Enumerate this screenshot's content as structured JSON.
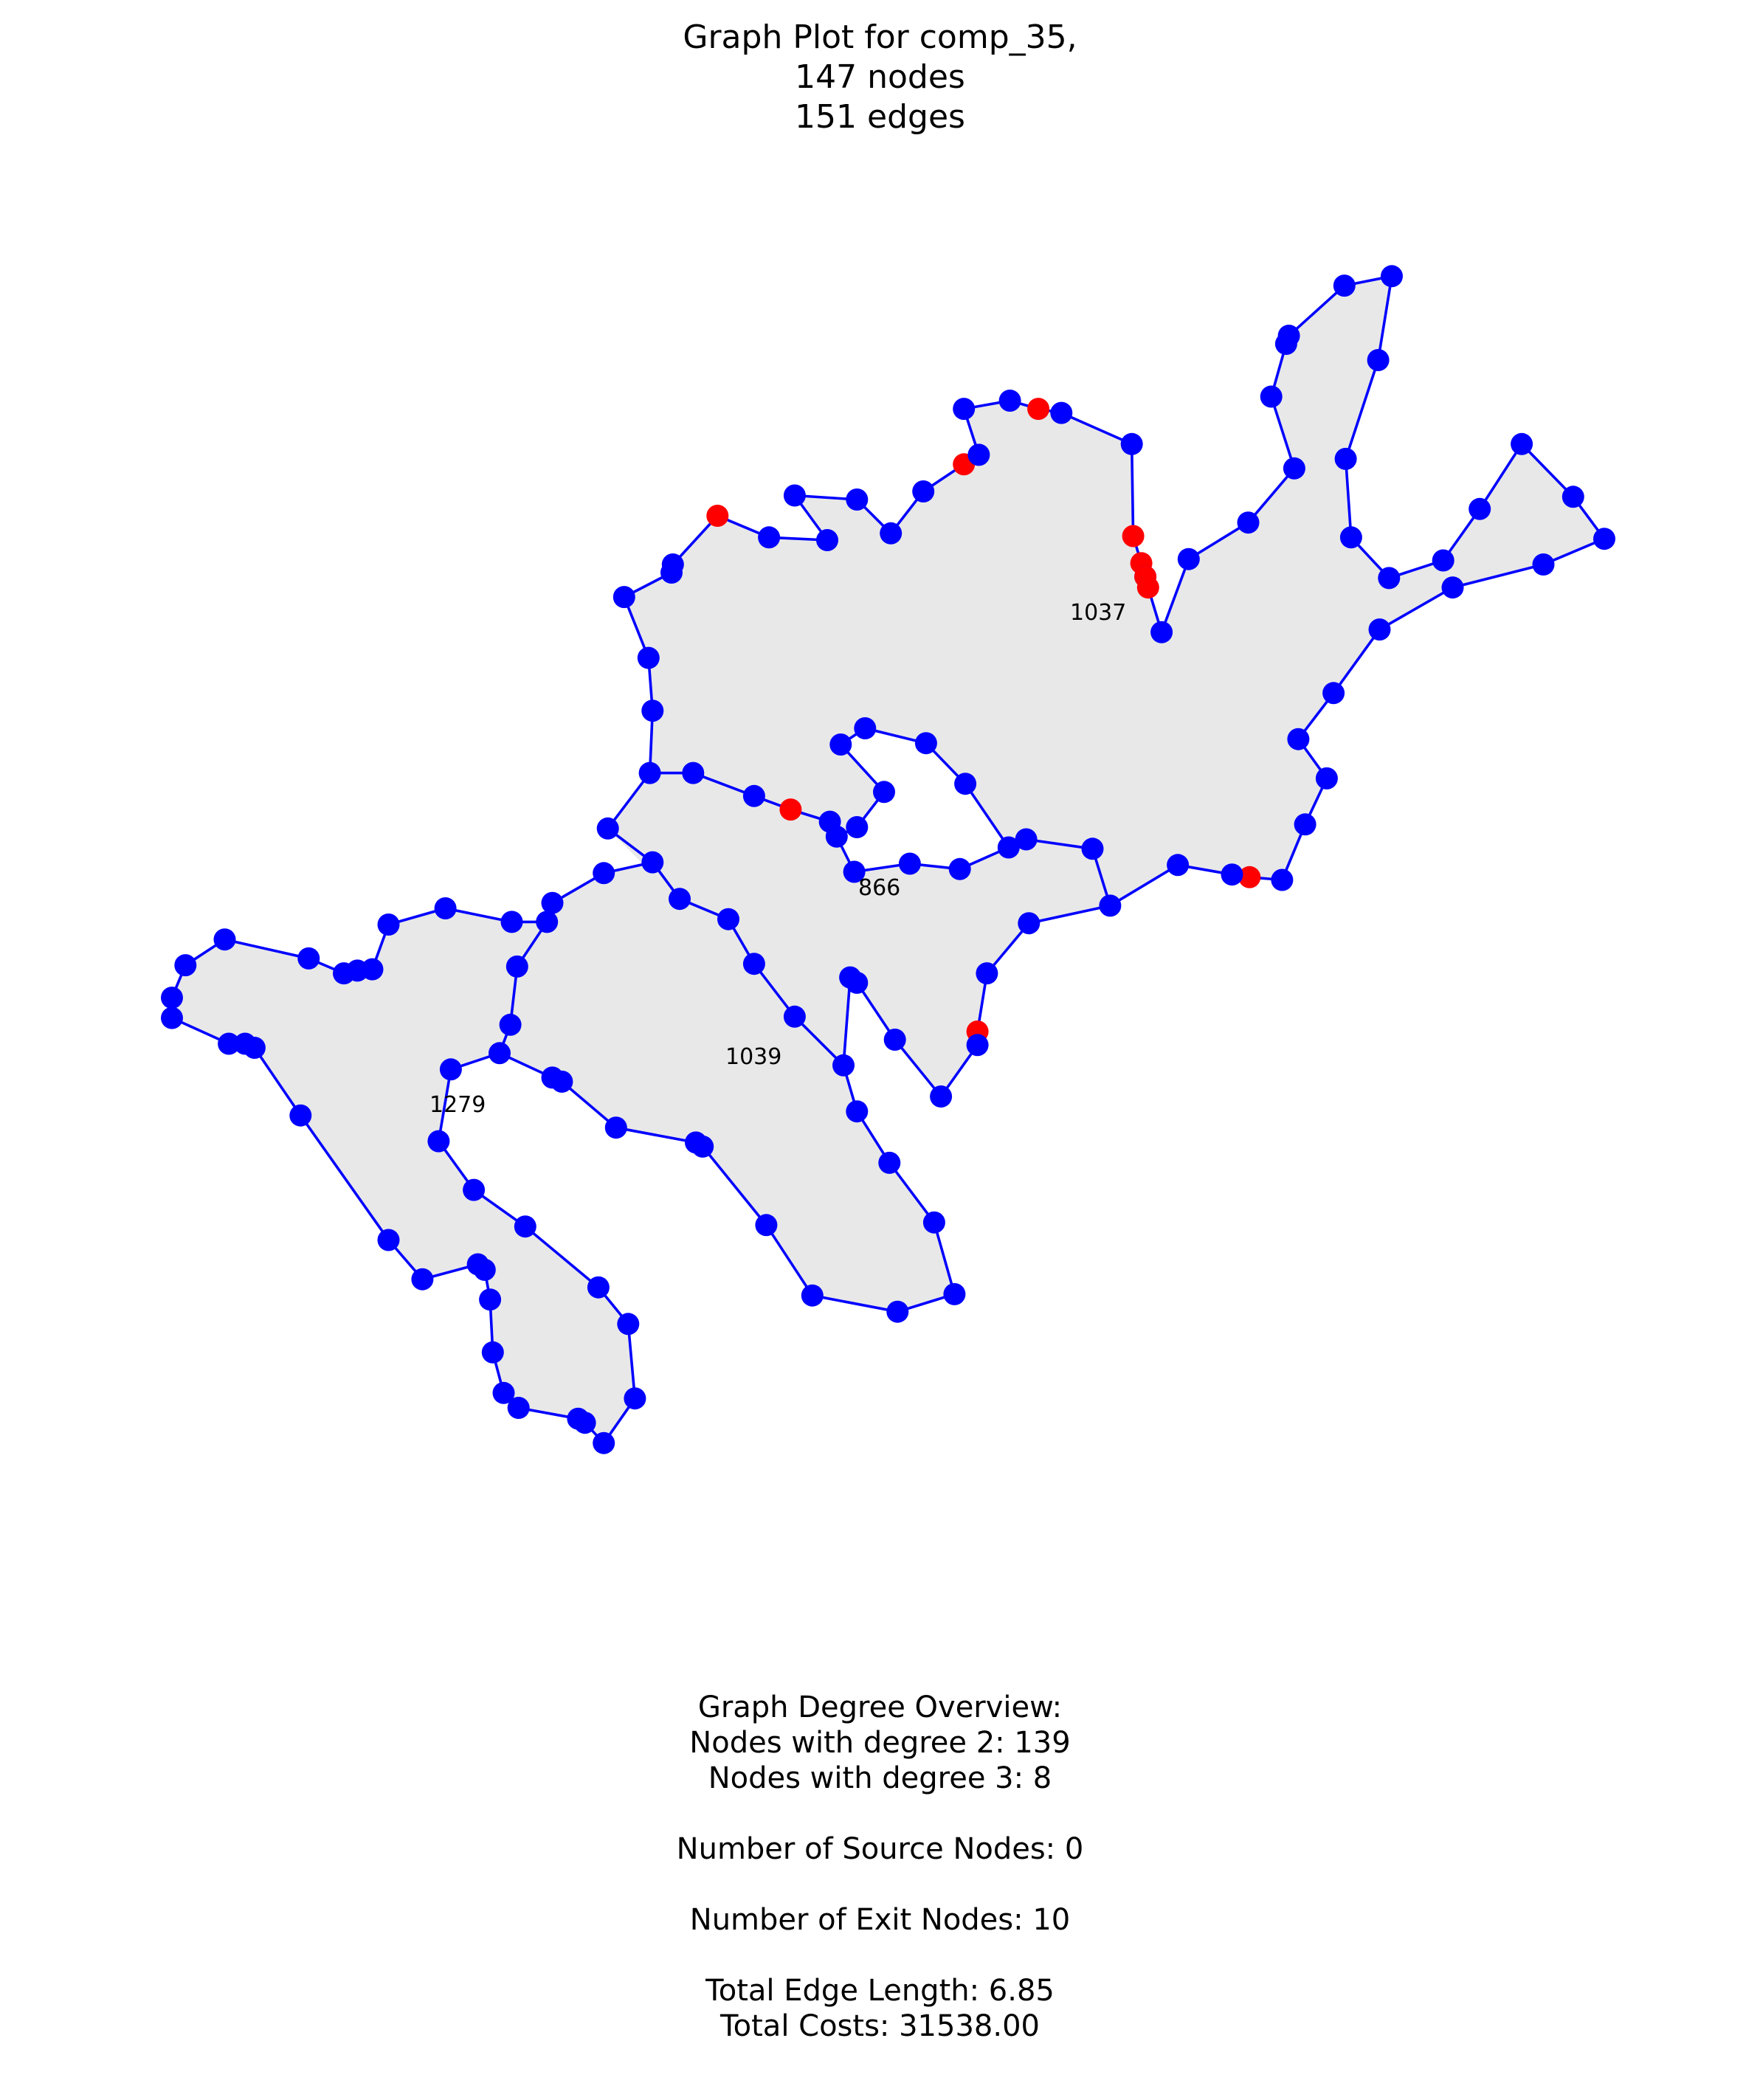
{
  "title": {
    "line1": "Graph Plot for comp_35,",
    "line2": "147 nodes",
    "line3": "151 edges"
  },
  "graph": {
    "node_color": "#0000ff",
    "exit_node_color": "#ff0000",
    "edge_color": "#0000ff",
    "face_fill": "#e8e8e8",
    "labels": [
      "1037",
      "866",
      "1039",
      "1279"
    ]
  },
  "overview": {
    "heading": "Graph Degree Overview:",
    "degree2": "Nodes with degree 2: 139",
    "degree3": "Nodes with degree 3: 8",
    "sources": "Number of Source Nodes: 0",
    "exits": "Number of Exit Nodes: 10",
    "length": "Total Edge Length: 6.85",
    "costs": "Total Costs: 31538.00"
  }
}
